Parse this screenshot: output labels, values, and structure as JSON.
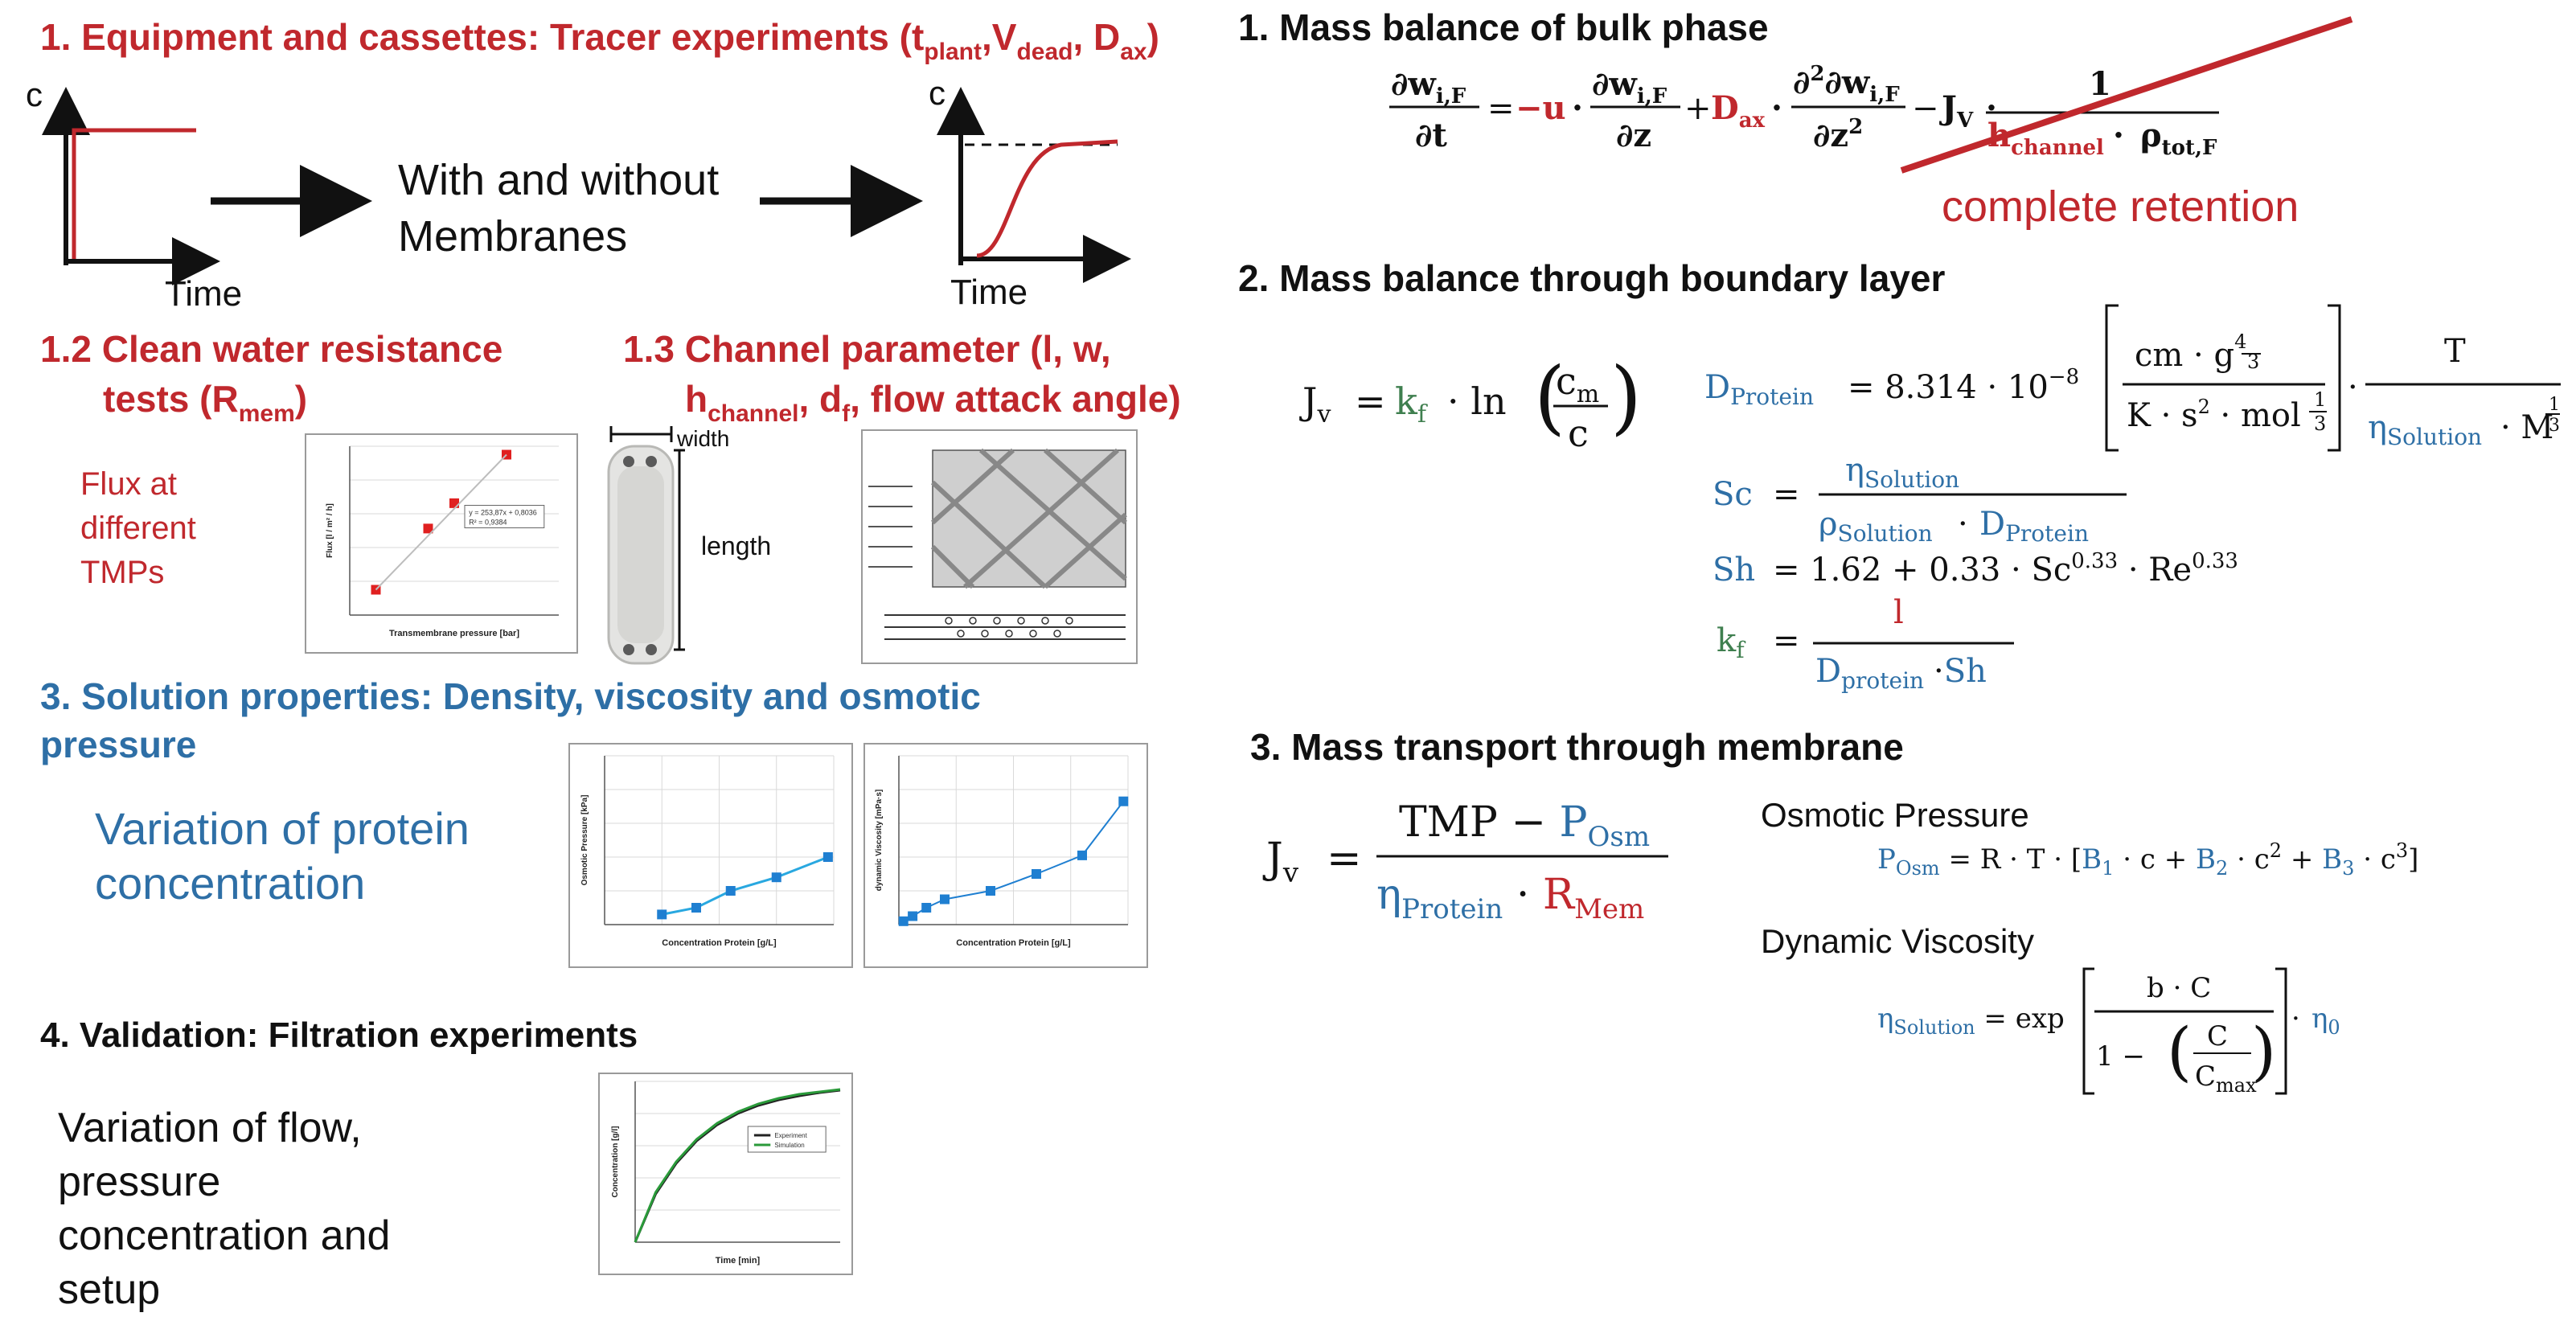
{
  "colors": {
    "red": "#c0282d",
    "blue": "#2e6fa6",
    "green": "#3f7f4f",
    "black": "#111111",
    "plotBlue": "#29a8e0",
    "plotSquare": "#1f7fd1",
    "plotGreen": "#2a9a3a"
  },
  "left": {
    "s1": {
      "text": "1. Equipment and cassettes: Tracer experiments (t",
      "sub1": "plant",
      "mid1": ",V",
      "sub2": "dead",
      "mid2": ",  D",
      "sub3": "ax",
      "end": ")"
    },
    "diagram": {
      "c1": "c",
      "c2": "c",
      "time1": "Time",
      "time2": "Time",
      "with1": "With and without",
      "with2": "Membranes"
    },
    "s12": {
      "line1": "1.2 Clean water resistance",
      "line2a": "tests (R",
      "line2sub": "mem",
      "line2b": ")"
    },
    "s13": {
      "line1": "1.3 Channel parameter (l, w,",
      "l2a": "h",
      "l2sub1": "channel",
      "l2b": ",  d",
      "l2sub2": "f",
      "l2c": ", flow attack angle)"
    },
    "flux": [
      "Flux at",
      "different",
      "TMPs"
    ],
    "cassette": {
      "width": "width",
      "length": "length"
    },
    "s3": {
      "line1": "3. Solution properties: Density, viscosity and osmotic",
      "line2": "pressure"
    },
    "protein": [
      "Variation of protein",
      "concentration"
    ],
    "s4": {
      "title": "4. Validation: Filtration experiments"
    },
    "flow": [
      "Variation of flow,",
      "pressure",
      "concentration and",
      "setup"
    ]
  },
  "chart_data": [
    {
      "type": "scatter",
      "title": "",
      "xlabel": "Transmembrane pressure [bar]",
      "ylabel": "Flux [l / m² / h]",
      "xlim": [
        0,
        2
      ],
      "ylim": [
        0,
        400
      ],
      "x": [
        0.25,
        0.75,
        1.0,
        1.5
      ],
      "y": [
        60,
        205,
        265,
        380
      ],
      "annotation": [
        "y = 253,87x + 0,8036",
        "R² = 0,9384"
      ]
    },
    {
      "type": "line",
      "title": "",
      "xlabel": "Concentration Protein [g/L]",
      "ylabel": "Osmotic Pressure [kPa]",
      "xlim": [
        0,
        200
      ],
      "ylim": [
        0,
        50
      ],
      "x": [
        50,
        80,
        110,
        150,
        195
      ],
      "y": [
        3,
        5,
        10,
        14,
        20
      ]
    },
    {
      "type": "line",
      "title": "",
      "xlabel": "Concentration Protein [g/L]",
      "ylabel": "dynamic Viscosity [mPa·s]",
      "xlim": [
        0,
        250
      ],
      "ylim": [
        0,
        10
      ],
      "x": [
        5,
        15,
        30,
        50,
        100,
        150,
        200,
        245
      ],
      "y": [
        0.2,
        0.5,
        1.0,
        1.5,
        2.0,
        3.0,
        4.1,
        7.3
      ]
    },
    {
      "type": "line",
      "title": "",
      "xlabel": "Time [min]",
      "ylabel": "Concentration [g/l]",
      "xlim": [
        0,
        100
      ],
      "ylim": [
        0,
        100
      ],
      "series": [
        {
          "name": "Experiment",
          "x": [
            0,
            10,
            20,
            30,
            40,
            50,
            60,
            70,
            80,
            90,
            100
          ],
          "y": [
            0,
            30,
            49,
            63,
            73,
            80,
            85,
            88.5,
            91,
            93,
            94.5
          ]
        },
        {
          "name": "Simulation",
          "x": [
            0,
            10,
            20,
            30,
            40,
            50,
            60,
            70,
            80,
            90,
            100
          ],
          "y": [
            0,
            31,
            50,
            64,
            74,
            81,
            86,
            89.5,
            92,
            93.5,
            95
          ]
        }
      ]
    }
  ],
  "right": {
    "e1": {
      "title": "1. Mass balance of bulk phase",
      "retention": "complete retention",
      "dw": "∂w",
      "sub": "i,F",
      "dt": "∂t",
      "eq": "=",
      "minus_u": "−u",
      "dot": "·",
      "dz": "∂z",
      "plus": "+",
      "Dax": "D",
      "Daxsub": "ax",
      "d2": "∂",
      "sup2": "2",
      "dz2": "∂z",
      "minus": "−",
      "J": "J",
      "Jsub": "V",
      "one": "1",
      "h": "h",
      "hsub": "channel",
      "rho": "ρ",
      "rhosub": "tot,F"
    },
    "e2": {
      "title": "2. Mass balance through boundary layer",
      "Jv": "J",
      "Jsub": "v",
      "kf": "k",
      "kfsub": "f",
      "ln": "· ln",
      "cm": "c",
      "cmsub": "m",
      "c": "c",
      "Dp": "D",
      "Dpsub": "Protein",
      "eqv": "= 8.314 · 10",
      "exp": "−8",
      "cm2": "cm · g",
      "frac43n": "4",
      "frac43d": "3",
      "K": "K · s",
      "mol": " · mol",
      "frac13n": "1",
      "frac13d": "3",
      "T": "T",
      "eta": "η",
      "etasub": "Solution",
      "M": " · M",
      "Sc": "Sc",
      "rho": "ρ",
      "rhosub": "Solution",
      "Dprot": "D",
      "Dprotsub": "Protein",
      "Sh": "Sh",
      "shrest": "=  1.62  +  0.33  ·  Sc",
      "exp33": "0.33",
      "re": "  ·  Re",
      "exp33b": "0.33",
      "kf2": "k",
      "kf2sub": "f",
      "l": "l",
      "Dp2": "D",
      "Dp2sub": "protein",
      "dotsh": " · Sh"
    },
    "e3": {
      "title": "3. Mass transport through membrane",
      "Jv": "J",
      "Jsub": "v",
      "TMP": "TMP  − ",
      "P": "P",
      "Psub": "Osm",
      "eta": "η",
      "etasub": "Protein",
      "dot": " · ",
      "R": "R",
      "Rsub": "Mem",
      "osmTitle": "Osmotic Pressure",
      "posm": "P",
      "posmsub": "Osm",
      "posmRest": " = R · T · [",
      "B1": "B",
      "B1sub": "1",
      "c1": " · c + ",
      "B2": "B",
      "B2sub": "2",
      "c2": " · c",
      "sq": "2",
      "plus3": " + ",
      "B3": "B",
      "B3sub": "3",
      "c3": " · c",
      "cube": "3",
      "close": "]",
      "viscTitle": "Dynamic Viscosity",
      "etaS": "η",
      "etaSsub": "Solution",
      "expeq": " = exp",
      "bC": "b · C",
      "oneminus": "1 − ",
      "C": "C",
      "Cmax": "C",
      "Cmaxsub": "max",
      "eta0": "η",
      "eta0sub": "0"
    }
  }
}
